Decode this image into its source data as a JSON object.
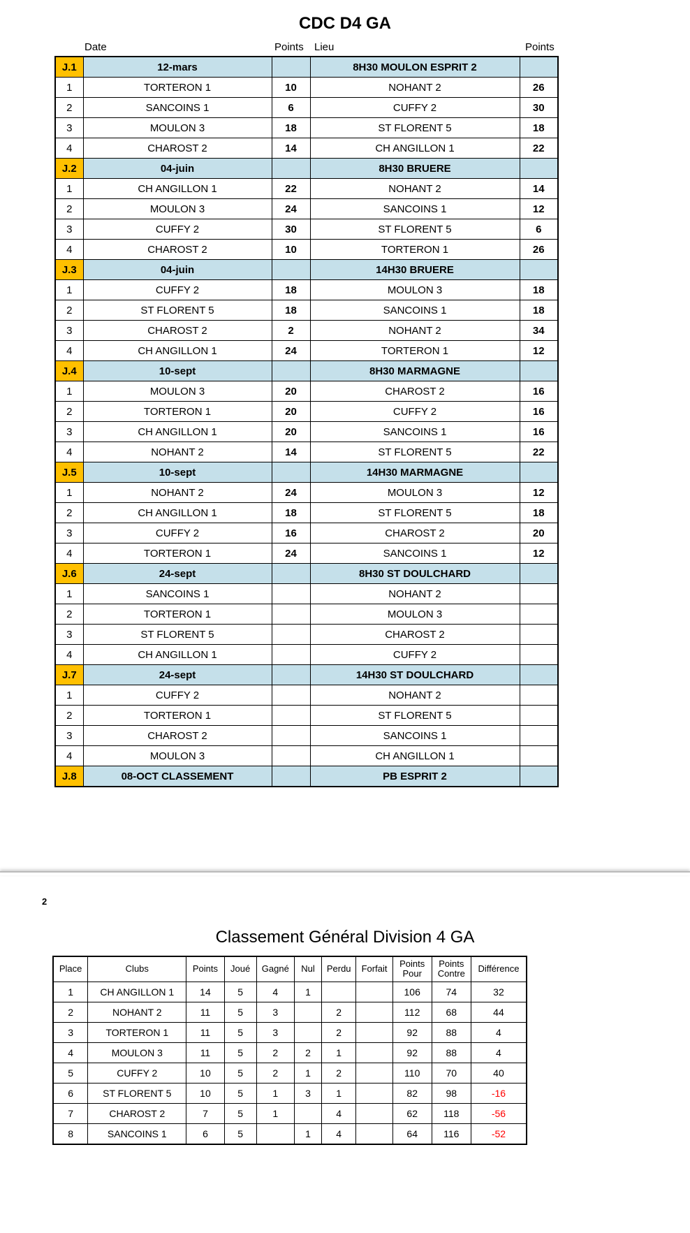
{
  "title1": "CDC D4 GA",
  "colors": {
    "header_orange": "#ffc000",
    "header_blue": "#c5e0ea",
    "border": "#000000",
    "negative": "#ff0000",
    "background": "#ffffff"
  },
  "schedule": {
    "column_headers": [
      "",
      "Date",
      "Points",
      "Lieu",
      "Points"
    ],
    "rounds": [
      {
        "code": "J.1",
        "date": "12-mars",
        "venue": "8H30 MOULON ESPRIT 2",
        "matches": [
          {
            "n": "1",
            "t1": "TORTERON 1",
            "p1": "10",
            "t2": "NOHANT 2",
            "p2": "26"
          },
          {
            "n": "2",
            "t1": "SANCOINS 1",
            "p1": "6",
            "t2": "CUFFY 2",
            "p2": "30"
          },
          {
            "n": "3",
            "t1": "MOULON 3",
            "p1": "18",
            "t2": "ST FLORENT 5",
            "p2": "18"
          },
          {
            "n": "4",
            "t1": "CHAROST 2",
            "p1": "14",
            "t2": "CH ANGILLON 1",
            "p2": "22"
          }
        ]
      },
      {
        "code": "J.2",
        "date": "04-juin",
        "venue": "8H30 BRUERE",
        "matches": [
          {
            "n": "1",
            "t1": "CH ANGILLON 1",
            "p1": "22",
            "t2": "NOHANT 2",
            "p2": "14"
          },
          {
            "n": "2",
            "t1": "MOULON 3",
            "p1": "24",
            "t2": "SANCOINS 1",
            "p2": "12"
          },
          {
            "n": "3",
            "t1": "CUFFY 2",
            "p1": "30",
            "t2": "ST FLORENT 5",
            "p2": "6"
          },
          {
            "n": "4",
            "t1": "CHAROST 2",
            "p1": "10",
            "t2": "TORTERON 1",
            "p2": "26"
          }
        ]
      },
      {
        "code": "J.3",
        "date": "04-juin",
        "venue": "14H30 BRUERE",
        "matches": [
          {
            "n": "1",
            "t1": "CUFFY 2",
            "p1": "18",
            "t2": "MOULON 3",
            "p2": "18"
          },
          {
            "n": "2",
            "t1": "ST FLORENT 5",
            "p1": "18",
            "t2": "SANCOINS 1",
            "p2": "18"
          },
          {
            "n": "3",
            "t1": "CHAROST 2",
            "p1": "2",
            "t2": "NOHANT 2",
            "p2": "34"
          },
          {
            "n": "4",
            "t1": "CH ANGILLON 1",
            "p1": "24",
            "t2": "TORTERON 1",
            "p2": "12"
          }
        ]
      },
      {
        "code": "J.4",
        "date": "10-sept",
        "venue": "8H30 MARMAGNE",
        "matches": [
          {
            "n": "1",
            "t1": "MOULON 3",
            "p1": "20",
            "t2": "CHAROST 2",
            "p2": "16"
          },
          {
            "n": "2",
            "t1": "TORTERON 1",
            "p1": "20",
            "t2": "CUFFY 2",
            "p2": "16"
          },
          {
            "n": "3",
            "t1": "CH ANGILLON 1",
            "p1": "20",
            "t2": "SANCOINS 1",
            "p2": "16"
          },
          {
            "n": "4",
            "t1": "NOHANT 2",
            "p1": "14",
            "t2": "ST FLORENT 5",
            "p2": "22"
          }
        ]
      },
      {
        "code": "J.5",
        "date": "10-sept",
        "venue": "14H30 MARMAGNE",
        "matches": [
          {
            "n": "1",
            "t1": "NOHANT 2",
            "p1": "24",
            "t2": "MOULON 3",
            "p2": "12"
          },
          {
            "n": "2",
            "t1": "CH ANGILLON 1",
            "p1": "18",
            "t2": "ST FLORENT 5",
            "p2": "18"
          },
          {
            "n": "3",
            "t1": "CUFFY 2",
            "p1": "16",
            "t2": "CHAROST 2",
            "p2": "20"
          },
          {
            "n": "4",
            "t1": "TORTERON 1",
            "p1": "24",
            "t2": "SANCOINS 1",
            "p2": "12"
          }
        ]
      },
      {
        "code": "J.6",
        "date": "24-sept",
        "venue": "8H30 ST DOULCHARD",
        "matches": [
          {
            "n": "1",
            "t1": "SANCOINS 1",
            "p1": "",
            "t2": "NOHANT 2",
            "p2": ""
          },
          {
            "n": "2",
            "t1": "TORTERON 1",
            "p1": "",
            "t2": "MOULON 3",
            "p2": ""
          },
          {
            "n": "3",
            "t1": "ST FLORENT 5",
            "p1": "",
            "t2": "CHAROST 2",
            "p2": ""
          },
          {
            "n": "4",
            "t1": "CH ANGILLON 1",
            "p1": "",
            "t2": "CUFFY 2",
            "p2": ""
          }
        ]
      },
      {
        "code": "J.7",
        "date": "24-sept",
        "venue": "14H30 ST DOULCHARD",
        "matches": [
          {
            "n": "1",
            "t1": "CUFFY 2",
            "p1": "",
            "t2": "NOHANT 2",
            "p2": ""
          },
          {
            "n": "2",
            "t1": "TORTERON 1",
            "p1": "",
            "t2": "ST FLORENT 5",
            "p2": ""
          },
          {
            "n": "3",
            "t1": "CHAROST 2",
            "p1": "",
            "t2": "SANCOINS 1",
            "p2": ""
          },
          {
            "n": "4",
            "t1": "MOULON 3",
            "p1": "",
            "t2": "CH ANGILLON 1",
            "p2": ""
          }
        ]
      },
      {
        "code": "J.8",
        "date": "08-OCT CLASSEMENT",
        "venue": "PB ESPRIT 2",
        "matches": []
      }
    ]
  },
  "page_number": "2",
  "title2": "Classement Général Division 4 GA",
  "standings": {
    "headers": [
      "Place",
      "Clubs",
      "Points",
      "Joué",
      "Gagné",
      "Nul",
      "Perdu",
      "Forfait",
      "Points Pour",
      "Points Contre",
      "Différence"
    ],
    "rows": [
      {
        "place": "1",
        "club": "CH ANGILLON 1",
        "pts": "14",
        "j": "5",
        "g": "4",
        "n": "1",
        "p": "",
        "f": "",
        "pf": "106",
        "pc": "74",
        "diff": "32",
        "neg": false
      },
      {
        "place": "2",
        "club": "NOHANT 2",
        "pts": "11",
        "j": "5",
        "g": "3",
        "n": "",
        "p": "2",
        "f": "",
        "pf": "112",
        "pc": "68",
        "diff": "44",
        "neg": false
      },
      {
        "place": "3",
        "club": "TORTERON 1",
        "pts": "11",
        "j": "5",
        "g": "3",
        "n": "",
        "p": "2",
        "f": "",
        "pf": "92",
        "pc": "88",
        "diff": "4",
        "neg": false
      },
      {
        "place": "4",
        "club": "MOULON 3",
        "pts": "11",
        "j": "5",
        "g": "2",
        "n": "2",
        "p": "1",
        "f": "",
        "pf": "92",
        "pc": "88",
        "diff": "4",
        "neg": false
      },
      {
        "place": "5",
        "club": "CUFFY 2",
        "pts": "10",
        "j": "5",
        "g": "2",
        "n": "1",
        "p": "2",
        "f": "",
        "pf": "110",
        "pc": "70",
        "diff": "40",
        "neg": false
      },
      {
        "place": "6",
        "club": "ST FLORENT 5",
        "pts": "10",
        "j": "5",
        "g": "1",
        "n": "3",
        "p": "1",
        "f": "",
        "pf": "82",
        "pc": "98",
        "diff": "-16",
        "neg": true
      },
      {
        "place": "7",
        "club": "CHAROST 2",
        "pts": "7",
        "j": "5",
        "g": "1",
        "n": "",
        "p": "4",
        "f": "",
        "pf": "62",
        "pc": "118",
        "diff": "-56",
        "neg": true
      },
      {
        "place": "8",
        "club": "SANCOINS 1",
        "pts": "6",
        "j": "5",
        "g": "",
        "n": "1",
        "p": "4",
        "f": "",
        "pf": "64",
        "pc": "116",
        "diff": "-52",
        "neg": true
      }
    ]
  }
}
